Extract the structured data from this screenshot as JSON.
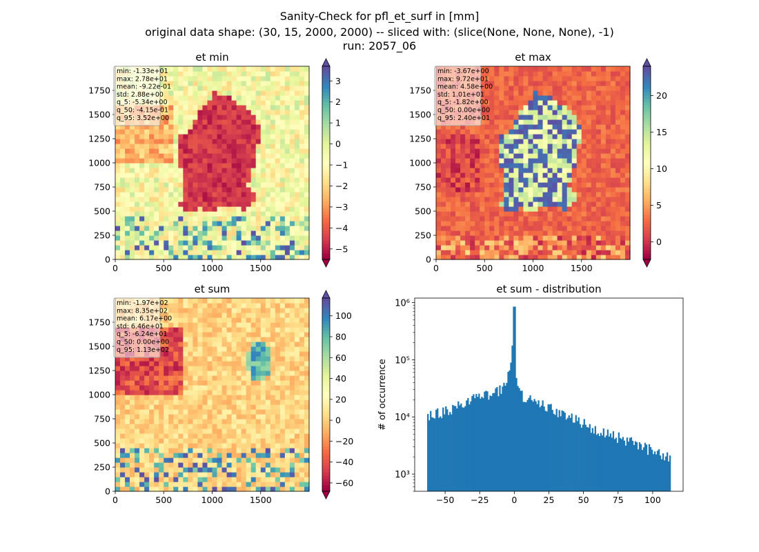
{
  "figure": {
    "title_lines": [
      "Sanity-Check for pfl_et_surf in [mm]",
      "original data shape: (30, 15, 2000, 2000) -- sliced with: (slice(None, None, None), -1)",
      "run: 2057_06"
    ]
  },
  "chart_data": [
    {
      "type": "heatmap",
      "title": "et min",
      "xlim": [
        0,
        2000
      ],
      "ylim": [
        0,
        2000
      ],
      "xticks": [
        0,
        500,
        1000,
        1500
      ],
      "yticks": [
        0,
        250,
        500,
        750,
        1000,
        1250,
        1500,
        1750
      ],
      "colormap": "Spectral",
      "colorbar": {
        "vmin": -5.5,
        "vmax": 3.7,
        "ticks": [
          3,
          2,
          1,
          0,
          -1,
          -2,
          -3,
          -4,
          -5
        ],
        "extend": "both"
      },
      "stats": [
        "min: -1.33e+01",
        "max: 2.78e+01",
        "mean: -9.22e-01",
        "std: 2.88e+00",
        "q_5: -5.34e+00",
        "q_50: -4.15e-01",
        "q_95: 3.52e+00"
      ]
    },
    {
      "type": "heatmap",
      "title": "et max",
      "xlim": [
        0,
        2000
      ],
      "ylim": [
        0,
        2000
      ],
      "xticks": [
        0,
        500,
        1000,
        1500
      ],
      "yticks": [
        0,
        250,
        500,
        750,
        1000,
        1250,
        1500,
        1750
      ],
      "colormap": "Spectral",
      "colorbar": {
        "vmin": -2.4,
        "vmax": 24.0,
        "ticks": [
          20,
          15,
          10,
          5,
          0
        ],
        "extend": "both"
      },
      "stats": [
        "min: -3.67e+00",
        "max: 9.72e+01",
        "mean: 4.58e+00",
        "std: 1.01e+01",
        "q_5: -1.82e+00",
        "q_50: 0.00e+00",
        "q_95: 2.40e+01"
      ]
    },
    {
      "type": "heatmap",
      "title": "et sum",
      "xlim": [
        0,
        2000
      ],
      "ylim": [
        0,
        2000
      ],
      "xticks": [
        0,
        500,
        1000,
        1500
      ],
      "yticks": [
        0,
        250,
        500,
        750,
        1000,
        1250,
        1500,
        1750
      ],
      "colormap": "Spectral",
      "colorbar": {
        "vmin": -68,
        "vmax": 117,
        "ticks": [
          100,
          80,
          60,
          40,
          20,
          0,
          -20,
          -40,
          -60
        ],
        "extend": "both"
      },
      "stats": [
        "min: -1.97e+02",
        "max: 8.35e+02",
        "mean: 6.17e+00",
        "std: 6.46e+01",
        "q_5: -6.24e+01",
        "q_50: 0.00e+00",
        "q_95: 1.13e+02"
      ]
    },
    {
      "type": "bar",
      "title": "et sum - distribution",
      "xlabel": "",
      "ylabel": "# of occurrence",
      "yscale": "log",
      "xlim": [
        -72,
        122
      ],
      "ylim": [
        500,
        1200000
      ],
      "xticks": [
        -50,
        -25,
        0,
        25,
        50,
        75,
        100
      ],
      "yticks": [
        {
          "value": 1000,
          "label": "10³"
        },
        {
          "value": 10000,
          "label": "10⁴"
        },
        {
          "value": 100000,
          "label": "10⁵"
        },
        {
          "value": 1000000,
          "label": "10⁶"
        }
      ],
      "bar_color": "#1f77b4",
      "bin_range": [
        -63,
        113
      ],
      "curve": {
        "x": [
          -63,
          -60,
          -55,
          -50,
          -45,
          -40,
          -35,
          -30,
          -25,
          -20,
          -15,
          -10,
          -6,
          -4,
          -2,
          -1,
          0,
          1,
          2,
          4,
          6,
          10,
          15,
          20,
          25,
          30,
          40,
          50,
          60,
          70,
          80,
          90,
          100,
          110,
          113
        ],
        "y": [
          9000,
          10500,
          11500,
          12500,
          13500,
          15500,
          17500,
          20000,
          22000,
          24000,
          26500,
          30000,
          40000,
          55000,
          120000,
          250000,
          850000,
          70000,
          36000,
          27000,
          23000,
          20000,
          18000,
          16000,
          14000,
          12500,
          9500,
          7500,
          6000,
          4800,
          3900,
          3200,
          2500,
          2000,
          1800
        ]
      }
    }
  ]
}
